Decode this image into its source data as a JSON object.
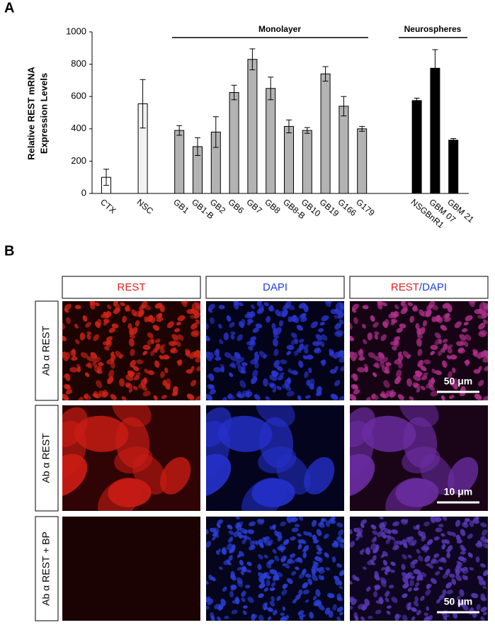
{
  "panel_labels": [
    "A",
    "B"
  ],
  "chart_data": {
    "type": "bar",
    "y_label": [
      "Relative REST mRNA",
      "Expression Levels"
    ],
    "categories": [
      "CTX",
      "NSC",
      "GB1",
      "GB1-B",
      "GB2",
      "GB6",
      "GB7",
      "GB8",
      "GB8-B",
      "GB10",
      "GB19",
      "G166",
      "G179",
      "NSGBnR1",
      "GBM 07",
      "GBM 21"
    ],
    "values": [
      100,
      555,
      390,
      290,
      380,
      625,
      830,
      650,
      415,
      390,
      740,
      540,
      400,
      575,
      775,
      330
    ],
    "errors": [
      50,
      150,
      30,
      55,
      95,
      45,
      65,
      70,
      40,
      18,
      45,
      60,
      15,
      15,
      115,
      10
    ],
    "colors": [
      "#ffffff",
      "#f2f2f2",
      "#b3b3b3",
      "#b3b3b3",
      "#b3b3b3",
      "#b3b3b3",
      "#b3b3b3",
      "#b3b3b3",
      "#b3b3b3",
      "#b3b3b3",
      "#b3b3b3",
      "#b3b3b3",
      "#b3b3b3",
      "#000000",
      "#000000",
      "#000000"
    ],
    "groups": [
      "Monolayer",
      "Neurospheres"
    ],
    "ylim": [
      0,
      1000
    ],
    "yticks": [
      0,
      200,
      400,
      600,
      800,
      1000
    ]
  },
  "panel_b": {
    "columns": [
      [
        "REST"
      ],
      [
        "DAPI"
      ],
      [
        "REST",
        "/DAPI"
      ]
    ],
    "rows": [
      "Ab α REST",
      "Ab α REST",
      "Ab α REST + BP"
    ],
    "scale_bars": [
      "50 μm",
      "10 μm",
      "50 μm"
    ]
  }
}
